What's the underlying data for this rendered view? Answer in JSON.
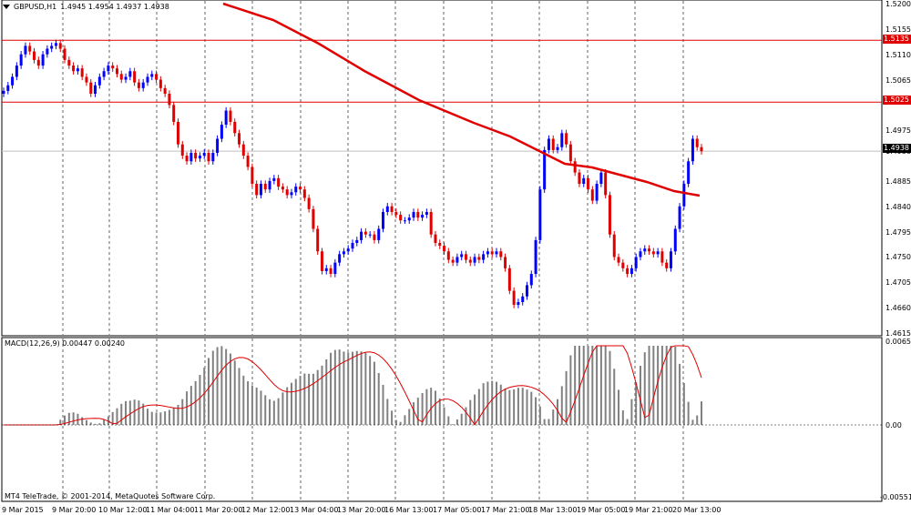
{
  "header": {
    "symbol_timeframe": "GBPUSD,H1",
    "ohlc": "1.4945 1.4954 1.4937 1.4938"
  },
  "price_axis": {
    "ticks": [
      "1.5200",
      "1.5155",
      "1.5110",
      "1.5065",
      "1.5025",
      "1.4975",
      "1.4938",
      "1.4885",
      "1.4840",
      "1.4795",
      "1.4750",
      "1.4705",
      "1.4660",
      "1.4615"
    ],
    "tick_values": [
      1.52,
      1.5155,
      1.511,
      1.5065,
      1.5025,
      1.4975,
      1.4938,
      1.4885,
      1.484,
      1.4795,
      1.475,
      1.4705,
      1.466,
      1.4615
    ],
    "levels": [
      {
        "label": "1.5135",
        "value": 1.5135,
        "color": "#e00000"
      },
      {
        "label": "1.5025",
        "value": 1.5025,
        "color": "#e00000"
      }
    ],
    "current": {
      "label": "1.4938",
      "value": 1.4938
    }
  },
  "macd": {
    "title": "MACD(12,26,9) 0.00447 0.00240",
    "ticks": [
      "0.00651",
      "0.00",
      "-0.00551"
    ]
  },
  "copyright": "MT4 TeleTrade, © 2001-2014, MetaQuotes Software Corp.",
  "time_axis": [
    "9 Mar 2015",
    "9 Mar 20:00",
    "10 Mar 12:00",
    "11 Mar 04:00",
    "11 Mar 20:00",
    "12 Mar 12:00",
    "13 Mar 04:00",
    "13 Mar 20:00",
    "16 Mar 13:00",
    "17 Mar 05:00",
    "17 Mar 21:00",
    "18 Mar 13:00",
    "19 Mar 05:00",
    "19 Mar 21:00",
    "20 Mar 13:00"
  ],
  "colors": {
    "bull": "#0000ff",
    "bear": "#e00000",
    "ma": "#e00000",
    "histogram": "#808080",
    "signal": "#e00000",
    "grid": "#000000"
  },
  "chart_data": {
    "type": "candlestick",
    "symbol": "GBPUSD",
    "timeframe": "H1",
    "ylim": [
      1.4615,
      1.52
    ],
    "closes": [
      1.5045,
      1.5055,
      1.507,
      1.509,
      1.511,
      1.5125,
      1.5115,
      1.51,
      1.509,
      1.511,
      1.512,
      1.5125,
      1.513,
      1.512,
      1.51,
      1.509,
      1.508,
      1.5085,
      1.507,
      1.506,
      1.504,
      1.5055,
      1.507,
      1.508,
      1.509,
      1.5085,
      1.5075,
      1.5065,
      1.507,
      1.508,
      1.506,
      1.505,
      1.506,
      1.507,
      1.5075,
      1.5065,
      1.505,
      1.504,
      1.502,
      1.499,
      1.495,
      1.493,
      1.492,
      1.4935,
      1.4925,
      1.493,
      1.4935,
      1.492,
      1.4935,
      1.496,
      1.4985,
      1.501,
      1.499,
      1.497,
      1.495,
      1.493,
      1.491,
      1.488,
      1.486,
      1.488,
      1.487,
      1.4885,
      1.489,
      1.4875,
      1.487,
      1.486,
      1.4865,
      1.4875,
      1.487,
      1.4855,
      1.4835,
      1.48,
      1.476,
      1.4725,
      1.473,
      1.472,
      1.474,
      1.4755,
      1.476,
      1.4765,
      1.4775,
      1.478,
      1.4795,
      1.479,
      1.479,
      1.478,
      1.48,
      1.483,
      1.484,
      1.483,
      1.4825,
      1.4815,
      1.4815,
      1.482,
      1.483,
      1.482,
      1.4825,
      1.483,
      1.479,
      1.4775,
      1.477,
      1.476,
      1.4745,
      1.474,
      1.475,
      1.4755,
      1.4745,
      1.474,
      1.475,
      1.4745,
      1.4755,
      1.476,
      1.4755,
      1.476,
      1.475,
      1.473,
      1.469,
      1.4665,
      1.467,
      1.468,
      1.47,
      1.472,
      1.478,
      1.487,
      1.494,
      1.496,
      1.494,
      1.4945,
      1.497,
      1.495,
      1.492,
      1.49,
      1.488,
      1.489,
      1.487,
      1.485,
      1.488,
      1.49,
      1.486,
      1.479,
      1.475,
      1.474,
      1.473,
      1.472,
      1.473,
      1.475,
      1.476,
      1.4765,
      1.476,
      1.4755,
      1.476,
      1.474,
      1.473,
      1.476,
      1.48,
      1.484,
      1.488,
      1.492,
      1.496,
      1.4945,
      1.4938
    ],
    "ma_start": 1.5205,
    "ma_end": 1.4855,
    "level_lines": [
      1.5135,
      1.5025
    ],
    "current_price": 1.4938,
    "macd_range": [
      -0.00551,
      0.00651
    ],
    "macd_main": 0.00447,
    "macd_signal": 0.0024
  }
}
